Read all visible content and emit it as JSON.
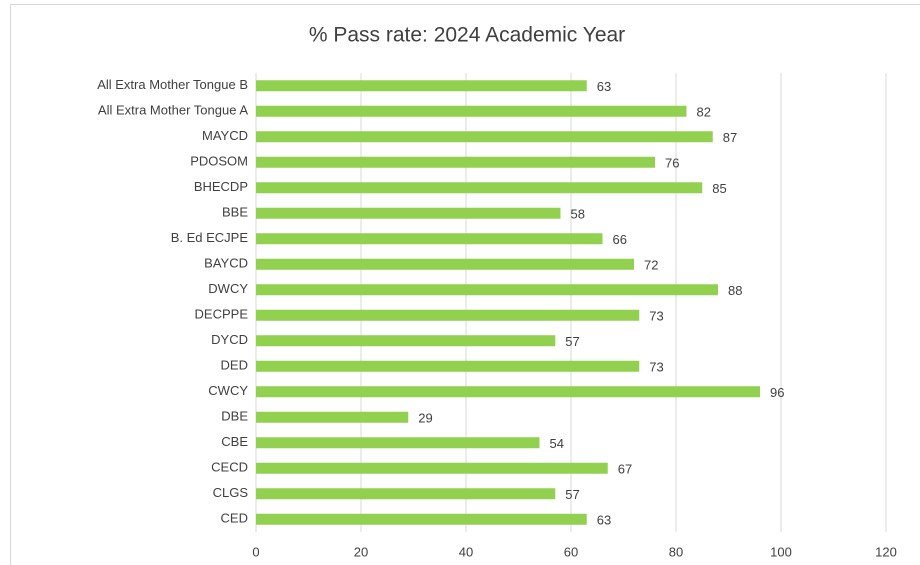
{
  "chart_data": {
    "type": "bar",
    "orientation": "horizontal",
    "title": "% Pass rate: 2024 Academic Year",
    "categories": [
      "All Extra Mother Tongue B",
      "All Extra Mother Tongue A",
      "MAYCD",
      "PDOSOM",
      "BHECDP",
      "BBE",
      "B. Ed ECJPE",
      "BAYCD",
      "DWCY",
      "DECPPE",
      "DYCD",
      "DED",
      "CWCY",
      "DBE",
      "CBE",
      "CECD",
      "CLGS",
      "CED"
    ],
    "values": [
      63,
      82,
      87,
      76,
      85,
      58,
      66,
      72,
      88,
      73,
      57,
      73,
      96,
      29,
      54,
      67,
      57,
      63
    ],
    "color": "#92d050",
    "xlim": [
      0,
      120
    ],
    "xticks": [
      0,
      20,
      40,
      60,
      80,
      100,
      120
    ],
    "grid": true
  }
}
